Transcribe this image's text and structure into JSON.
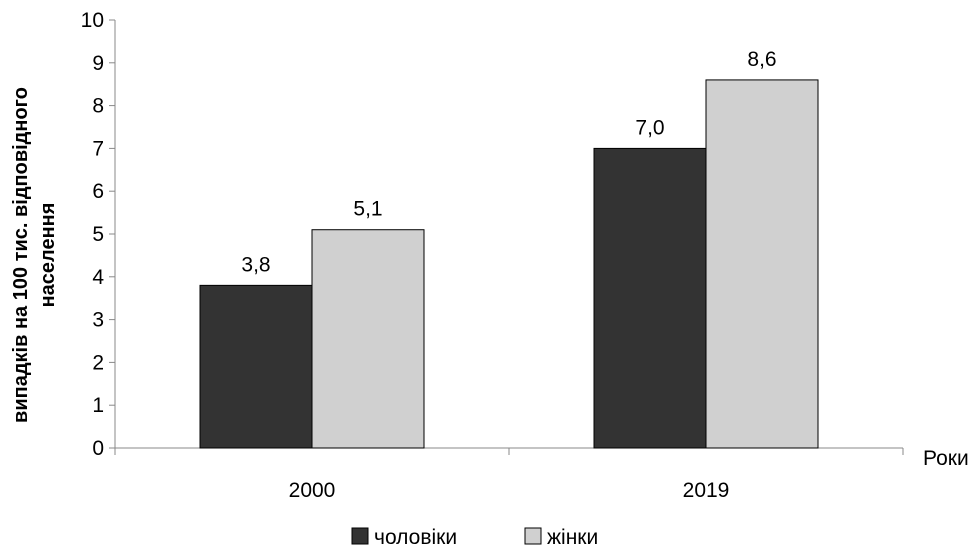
{
  "chart_data": {
    "type": "bar",
    "categories": [
      "2000",
      "2019"
    ],
    "series": [
      {
        "name": "чоловіки",
        "values": [
          3.8,
          7.0
        ],
        "labels": [
          "3,8",
          "7,0"
        ],
        "color": "#333333"
      },
      {
        "name": "жінки",
        "values": [
          5.1,
          8.6
        ],
        "labels": [
          "5,1",
          "8,6"
        ],
        "color": "#d0d0d0"
      }
    ],
    "title": "",
    "xlabel": "Роки",
    "ylabel_line1": "випадків на 100 тис. відповідного",
    "ylabel_line2": "населення",
    "ylim": [
      0,
      10
    ],
    "yticks": [
      "0",
      "1",
      "2",
      "3",
      "4",
      "5",
      "6",
      "7",
      "8",
      "9",
      "10"
    ],
    "grid": false,
    "legend_position": "bottom"
  }
}
